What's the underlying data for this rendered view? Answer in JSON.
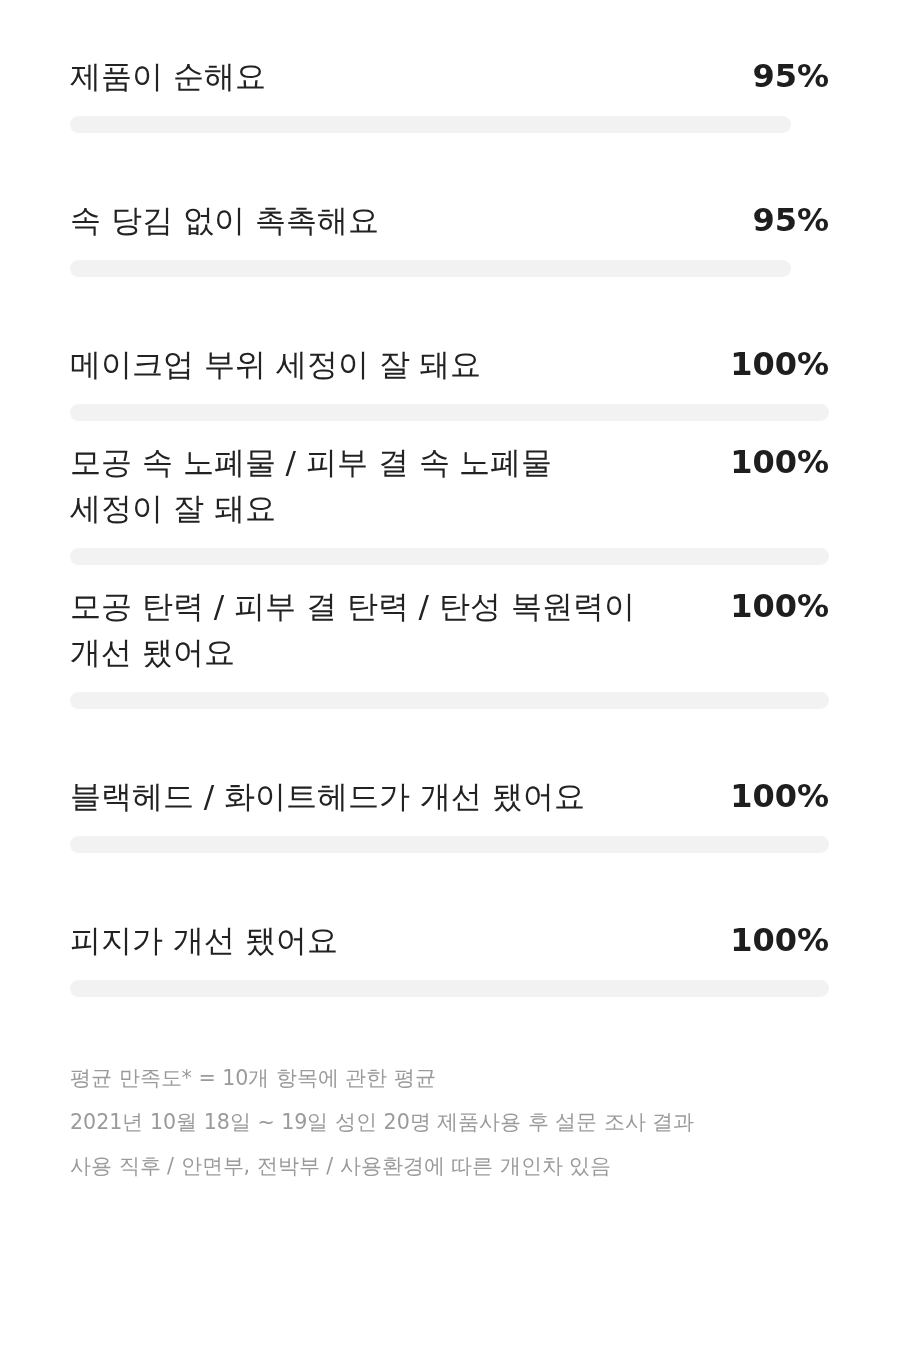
{
  "chart_data": {
    "type": "bar",
    "orientation": "horizontal",
    "categories": [
      "제품이 순해요",
      "속 당김 없이 촉촉해요",
      "메이크업 부위 세정이 잘 돼요",
      "모공 속 노폐물 / 피부 결 속 노폐물\n세정이 잘 돼요",
      "모공 탄력 / 피부 결 탄력 / 탄성 복원력이\n개선 됐어요",
      "블랙헤드 / 화이트헤드가 개선 됐어요",
      "피지가 개선 됐어요"
    ],
    "values": [
      95,
      95,
      100,
      100,
      100,
      100,
      100
    ],
    "value_labels": [
      "95%",
      "95%",
      "100%",
      "100%",
      "100%",
      "100%",
      "100%"
    ],
    "color": "#f2f2f2",
    "xlim": [
      0,
      100
    ],
    "annotations": [
      "평균 만족도* = 10개 항목에 관한 평균",
      "2021년 10월 18일 ~ 19일 성인 20명 제품사용 후 설문 조사 결과",
      "사용 직후 / 안면부, 전박부 / 사용환경에 따른 개인차 있음"
    ]
  }
}
